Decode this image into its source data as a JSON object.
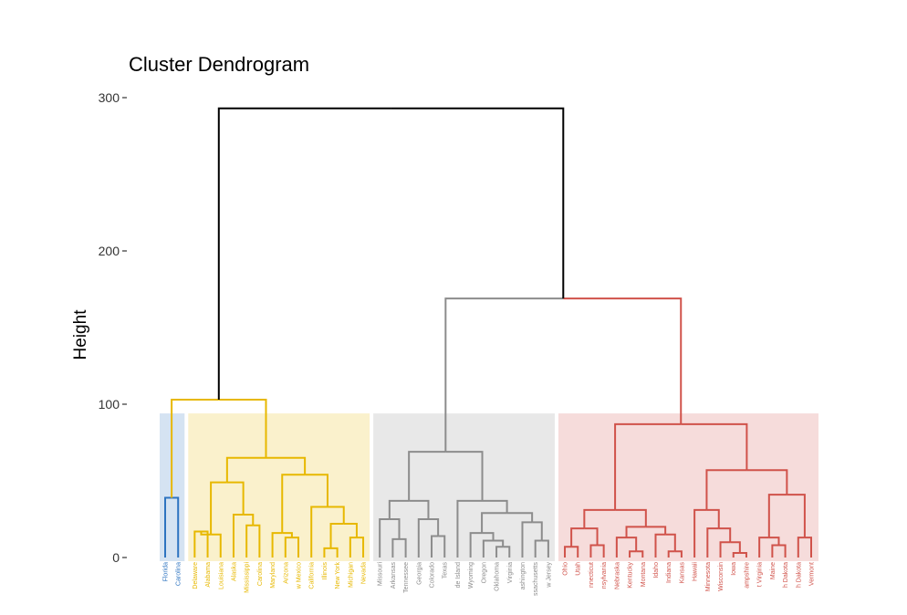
{
  "chart_data": {
    "type": "dendrogram",
    "title": "Cluster Dendrogram",
    "ylabel": "Height",
    "xlabel": "",
    "ylim": [
      0,
      300
    ],
    "yticks": [
      0,
      100,
      200,
      300
    ],
    "grid": false,
    "legend": "none",
    "cluster_colors": [
      "#2E74C0",
      "#E7B800",
      "#8C8C8C",
      "#D0524A"
    ],
    "leaves": [
      {
        "label": "Florida",
        "cluster": 0
      },
      {
        "label": "Carolina",
        "cluster": 0
      },
      {
        "label": "Delaware",
        "cluster": 1
      },
      {
        "label": "Alabama",
        "cluster": 1
      },
      {
        "label": "Louisiana",
        "cluster": 1
      },
      {
        "label": "Alaska",
        "cluster": 1
      },
      {
        "label": "Mississippi",
        "cluster": 1
      },
      {
        "label": "Carolina",
        "cluster": 1
      },
      {
        "label": "Maryland",
        "cluster": 1
      },
      {
        "label": "Arizona",
        "cluster": 1
      },
      {
        "label": "w Mexico",
        "cluster": 1
      },
      {
        "label": "California",
        "cluster": 1
      },
      {
        "label": "Illinois",
        "cluster": 1
      },
      {
        "label": "New York",
        "cluster": 1
      },
      {
        "label": "Michigan",
        "cluster": 1
      },
      {
        "label": "Nevada",
        "cluster": 1
      },
      {
        "label": "Missouri",
        "cluster": 2
      },
      {
        "label": "Arkansas",
        "cluster": 2
      },
      {
        "label": "Tennessee",
        "cluster": 2
      },
      {
        "label": "Georgia",
        "cluster": 2
      },
      {
        "label": "Colorado",
        "cluster": 2
      },
      {
        "label": "Texas",
        "cluster": 2
      },
      {
        "label": "de Island",
        "cluster": 2
      },
      {
        "label": "Wyoming",
        "cluster": 2
      },
      {
        "label": "Oregon",
        "cluster": 2
      },
      {
        "label": "Oklahoma",
        "cluster": 2
      },
      {
        "label": "Virginia",
        "cluster": 2
      },
      {
        "label": "ashington",
        "cluster": 2
      },
      {
        "label": "ssachusetts",
        "cluster": 2
      },
      {
        "label": "w Jersey",
        "cluster": 2
      },
      {
        "label": "Ohio",
        "cluster": 3
      },
      {
        "label": "Utah",
        "cluster": 3
      },
      {
        "label": "nnecticut",
        "cluster": 3
      },
      {
        "label": "nsylvania",
        "cluster": 3
      },
      {
        "label": "Nebraska",
        "cluster": 3
      },
      {
        "label": "Kentucky",
        "cluster": 3
      },
      {
        "label": "Montana",
        "cluster": 3
      },
      {
        "label": "Idaho",
        "cluster": 3
      },
      {
        "label": "Indiana",
        "cluster": 3
      },
      {
        "label": "Kansas",
        "cluster": 3
      },
      {
        "label": "Hawaii",
        "cluster": 3
      },
      {
        "label": "Minnesota",
        "cluster": 3
      },
      {
        "label": "Wisconsin",
        "cluster": 3
      },
      {
        "label": "Iowa",
        "cluster": 3
      },
      {
        "label": "ampshire",
        "cluster": 3
      },
      {
        "label": "t Virginia",
        "cluster": 3
      },
      {
        "label": "Maine",
        "cluster": 3
      },
      {
        "label": "h Dakota",
        "cluster": 3
      },
      {
        "label": "h Dakota",
        "cluster": 3
      },
      {
        "label": "Vermont",
        "cluster": 3
      }
    ],
    "merges": [
      {
        "a": "L0",
        "b": "L1",
        "h": 39,
        "color": 0
      },
      {
        "a": "L2",
        "b": "L3",
        "h": 17,
        "color": 1
      },
      {
        "a": "M1",
        "b": "L4",
        "h": 15,
        "color": 1
      },
      {
        "a": "L6",
        "b": "L7",
        "h": 21,
        "color": 1
      },
      {
        "a": "L5",
        "b": "M3",
        "h": 28,
        "color": 1
      },
      {
        "a": "M2",
        "b": "M4",
        "h": 49,
        "color": 1
      },
      {
        "a": "L9",
        "b": "L10",
        "h": 13,
        "color": 1
      },
      {
        "a": "L8",
        "b": "M6",
        "h": 16,
        "color": 1
      },
      {
        "a": "L12",
        "b": "L13",
        "h": 6,
        "color": 1
      },
      {
        "a": "L14",
        "b": "L15",
        "h": 13,
        "color": 1
      },
      {
        "a": "M8",
        "b": "M9",
        "h": 22,
        "color": 1
      },
      {
        "a": "L11",
        "b": "M10",
        "h": 33,
        "color": 1
      },
      {
        "a": "M7",
        "b": "M11",
        "h": 54,
        "color": 1
      },
      {
        "a": "M5",
        "b": "M12",
        "h": 65,
        "color": 1
      },
      {
        "a": "M0",
        "b": "M13",
        "h": 103,
        "color": 1
      },
      {
        "a": "L17",
        "b": "L18",
        "h": 12,
        "color": 2
      },
      {
        "a": "L16",
        "b": "M15",
        "h": 25,
        "color": 2
      },
      {
        "a": "L20",
        "b": "L21",
        "h": 14,
        "color": 2
      },
      {
        "a": "L19",
        "b": "M17",
        "h": 25,
        "color": 2
      },
      {
        "a": "M16",
        "b": "M18",
        "h": 37,
        "color": 2
      },
      {
        "a": "L25",
        "b": "L26",
        "h": 7,
        "color": 2
      },
      {
        "a": "L24",
        "b": "M20",
        "h": 11,
        "color": 2
      },
      {
        "a": "L23",
        "b": "M21",
        "h": 16,
        "color": 2
      },
      {
        "a": "L28",
        "b": "L29",
        "h": 11,
        "color": 2
      },
      {
        "a": "L27",
        "b": "M23",
        "h": 23,
        "color": 2
      },
      {
        "a": "M22",
        "b": "M24",
        "h": 29,
        "color": 2
      },
      {
        "a": "L22",
        "b": "M25",
        "h": 37,
        "color": 2
      },
      {
        "a": "M19",
        "b": "M26",
        "h": 69,
        "color": 2
      },
      {
        "a": "L30",
        "b": "L31",
        "h": 7,
        "color": 3
      },
      {
        "a": "L32",
        "b": "L33",
        "h": 8,
        "color": 3
      },
      {
        "a": "M28",
        "b": "M29",
        "h": 19,
        "color": 3
      },
      {
        "a": "L35",
        "b": "L36",
        "h": 4,
        "color": 3
      },
      {
        "a": "L34",
        "b": "M31",
        "h": 13,
        "color": 3
      },
      {
        "a": "L38",
        "b": "L39",
        "h": 4,
        "color": 3
      },
      {
        "a": "L37",
        "b": "M33",
        "h": 15,
        "color": 3
      },
      {
        "a": "M32",
        "b": "M34",
        "h": 20,
        "color": 3
      },
      {
        "a": "M30",
        "b": "M35",
        "h": 31,
        "color": 3
      },
      {
        "a": "L43",
        "b": "L44",
        "h": 3,
        "color": 3
      },
      {
        "a": "L42",
        "b": "M37",
        "h": 10,
        "color": 3
      },
      {
        "a": "L41",
        "b": "M38",
        "h": 19,
        "color": 3
      },
      {
        "a": "L40",
        "b": "M39",
        "h": 31,
        "color": 3
      },
      {
        "a": "L46",
        "b": "L47",
        "h": 8,
        "color": 3
      },
      {
        "a": "L45",
        "b": "M41",
        "h": 13,
        "color": 3
      },
      {
        "a": "L48",
        "b": "L49",
        "h": 13,
        "color": 3
      },
      {
        "a": "M42",
        "b": "M43",
        "h": 41,
        "color": 3
      },
      {
        "a": "M40",
        "b": "M44",
        "h": 57,
        "color": 3
      },
      {
        "a": "M36",
        "b": "M45",
        "h": 87,
        "color": 3
      },
      {
        "a": "M27",
        "b": "M46",
        "h": 169,
        "color": "mixed"
      },
      {
        "a": "M14",
        "b": "M47",
        "h": 293,
        "color": "root"
      }
    ]
  }
}
